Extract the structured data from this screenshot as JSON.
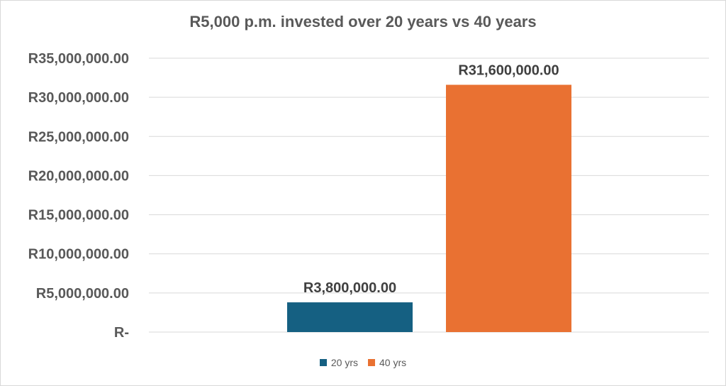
{
  "chart_data": {
    "type": "bar",
    "title": "R5,000 p.m. invested over 20 years vs 40 years",
    "categories": [
      ""
    ],
    "series": [
      {
        "name": "20 yrs",
        "values": [
          3800000
        ],
        "label": "R3,800,000.00",
        "color": "#156082"
      },
      {
        "name": "40 yrs",
        "values": [
          31600000
        ],
        "label": "R31,600,000.00",
        "color": "#E97132"
      }
    ],
    "ylim": [
      0,
      35000000
    ],
    "yticks": [
      {
        "value": 0,
        "label": "R-"
      },
      {
        "value": 5000000,
        "label": "R5,000,000.00"
      },
      {
        "value": 10000000,
        "label": "R10,000,000.00"
      },
      {
        "value": 15000000,
        "label": "R15,000,000.00"
      },
      {
        "value": 20000000,
        "label": "R20,000,000.00"
      },
      {
        "value": 25000000,
        "label": "R25,000,000.00"
      },
      {
        "value": 30000000,
        "label": "R30,000,000.00"
      },
      {
        "value": 35000000,
        "label": "R35,000,000.00"
      }
    ],
    "xlabel": "",
    "ylabel": "",
    "grid": true,
    "legend": "bottom"
  }
}
